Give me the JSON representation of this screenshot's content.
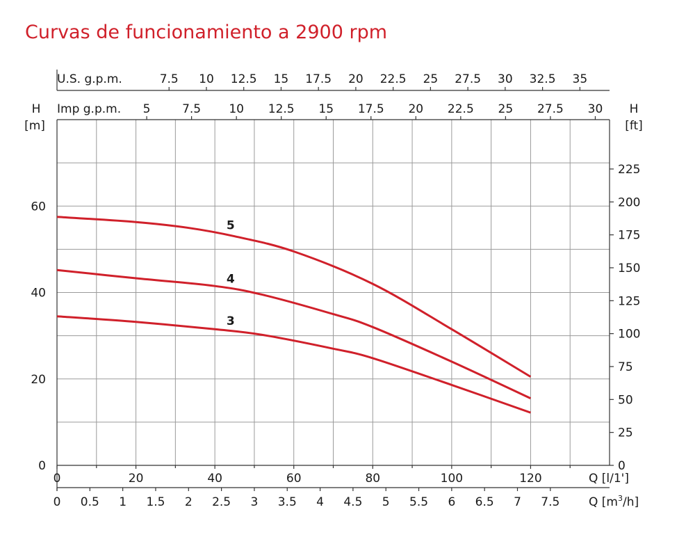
{
  "chart_data": {
    "type": "line",
    "title": "Curvas de funcionamiento a 2900 rpm",
    "axes": {
      "x_main": {
        "label": "Q [l/1']",
        "ticks": [
          "0",
          "20",
          "40",
          "60",
          "80",
          "100",
          "120"
        ],
        "range": [
          0,
          140
        ]
      },
      "x_m3h": {
        "label_prefix": "Q [m",
        "label_sup": "3",
        "label_suffix": "/h]",
        "ticks": [
          "0",
          "0.5",
          "1",
          "1.5",
          "2",
          "2.5",
          "3",
          "3.5",
          "4",
          "4.5",
          "5",
          "5.5",
          "6",
          "6.5",
          "7",
          "7.5"
        ]
      },
      "x_usgpm": {
        "label": "U.S. g.p.m.",
        "ticks": [
          "7.5",
          "10",
          "12.5",
          "15",
          "17.5",
          "20",
          "22.5",
          "25",
          "27.5",
          "30",
          "32.5",
          "35"
        ]
      },
      "x_impgpm": {
        "label": "Imp g.p.m.",
        "ticks": [
          "5",
          "7.5",
          "10",
          "12.5",
          "15",
          "17.5",
          "20",
          "22.5",
          "25",
          "27.5",
          "30"
        ]
      },
      "y_left": {
        "label_top": "H",
        "label_unit": "[m]",
        "ticks": [
          "0",
          "20",
          "40",
          "60"
        ],
        "range": [
          0,
          80
        ]
      },
      "y_right": {
        "label_top": "H",
        "label_unit": "[ft]",
        "ticks": [
          "0",
          "25",
          "50",
          "75",
          "100",
          "125",
          "150",
          "175",
          "200",
          "225"
        ]
      }
    },
    "series": [
      {
        "name": "5",
        "x": [
          0,
          20,
          33,
          45,
          60,
          80,
          100,
          120
        ],
        "y": [
          57.5,
          56.3,
          55,
          53,
          49.5,
          42,
          31.5,
          20.5
        ]
      },
      {
        "name": "4",
        "x": [
          0,
          20,
          40,
          52,
          70,
          80,
          100,
          120
        ],
        "y": [
          45.2,
          43.3,
          41.5,
          39.5,
          35,
          32,
          24,
          15.5
        ]
      },
      {
        "name": "3",
        "x": [
          0,
          20,
          40,
          52,
          70,
          80,
          100,
          120
        ],
        "y": [
          34.5,
          33.2,
          31.5,
          30.2,
          27,
          24.8,
          18.6,
          12.2
        ]
      }
    ],
    "grid": true,
    "colors": {
      "curve": "#d0202a",
      "title": "#d0202a",
      "grid": "#9a9a9a"
    }
  }
}
